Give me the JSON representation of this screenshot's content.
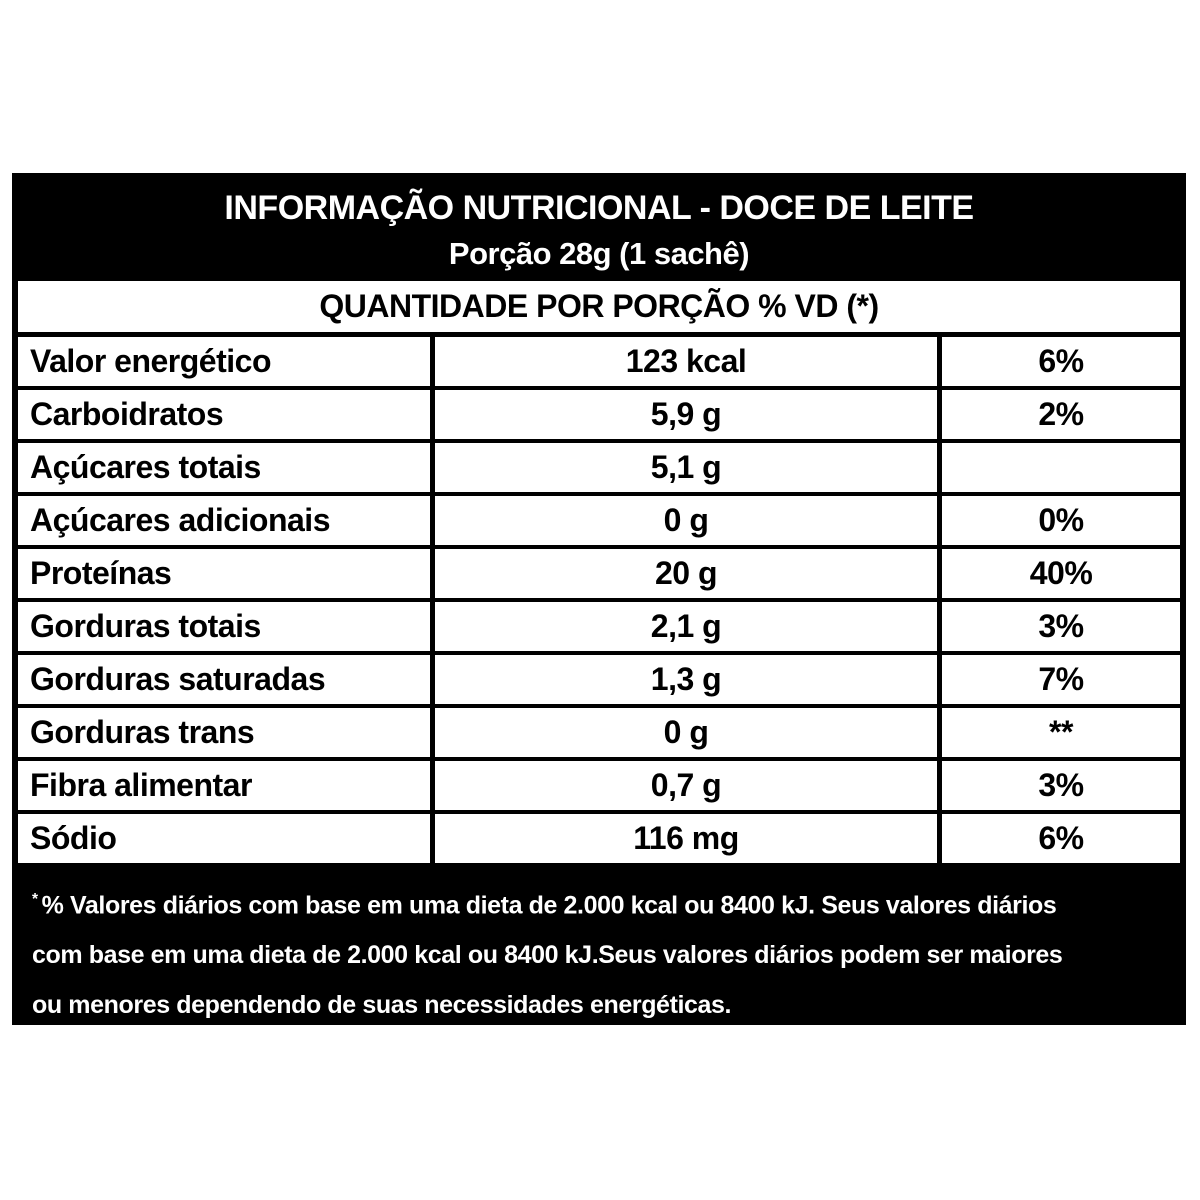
{
  "table": {
    "title": "INFORMAÇÃO NUTRICIONAL - DOCE DE LEITE",
    "serving": "Porção 28g (1 sachê)",
    "section_header": "QUANTIDADE POR PORÇÃO % VD (*)",
    "rows": [
      {
        "name": "Valor energético",
        "amount": "123 kcal",
        "dv": "6%"
      },
      {
        "name": "Carboidratos",
        "amount": "5,9 g",
        "dv": "2%"
      },
      {
        "name": "Açúcares totais",
        "amount": "5,1 g",
        "dv": ""
      },
      {
        "name": "Açúcares adicionais",
        "amount": "0 g",
        "dv": "0%"
      },
      {
        "name": "Proteínas",
        "amount": "20 g",
        "dv": "40%"
      },
      {
        "name": "Gorduras totais",
        "amount": "2,1 g",
        "dv": "3%"
      },
      {
        "name": "Gorduras saturadas",
        "amount": "1,3 g",
        "dv": "7%"
      },
      {
        "name": "Gorduras trans",
        "amount": "0 g",
        "dv": "**"
      },
      {
        "name": "Fibra alimentar",
        "amount": "0,7 g",
        "dv": "3%"
      },
      {
        "name": "Sódio",
        "amount": "116 mg",
        "dv": "6%"
      }
    ],
    "footnote": {
      "asterisk": "*",
      "lines": [
        "% Valores diários com base em uma dieta de 2.000 kcal ou 8400 kJ. Seus valores diários",
        "com base em uma dieta de 2.000 kcal ou 8400 kJ.Seus valores diários podem ser maiores",
        "ou menores dependendo de suas necessidades energéticas."
      ]
    },
    "colors": {
      "header_bg": "#000000",
      "header_text": "#ffffff",
      "body_bg": "#ffffff",
      "body_text": "#000000",
      "border": "#000000"
    }
  }
}
